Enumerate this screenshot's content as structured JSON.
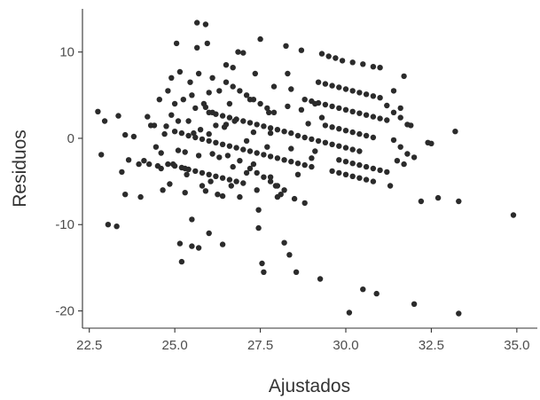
{
  "chart_data": {
    "type": "scatter",
    "xlabel": "Ajustados",
    "ylabel": "Residuos",
    "xlim": [
      22.3,
      35.6
    ],
    "ylim": [
      -22,
      15
    ],
    "xticks": [
      "22.5",
      "25.0",
      "27.5",
      "30.0",
      "32.5",
      "35.0"
    ],
    "yticks": [
      "10",
      "0",
      "-10",
      "-20"
    ],
    "grid": false,
    "legend": "none",
    "point_color": "#2b2b2b",
    "series": [
      {
        "points": [
          [
            22.75,
            3.1
          ],
          [
            22.85,
            -1.9
          ],
          [
            22.95,
            2.0
          ],
          [
            23.05,
            -10.0
          ],
          [
            23.3,
            -10.2
          ],
          [
            23.35,
            2.6
          ],
          [
            23.45,
            -3.9
          ],
          [
            23.55,
            -6.5
          ],
          [
            23.55,
            0.4
          ],
          [
            23.65,
            -2.5
          ],
          [
            23.8,
            0.2
          ],
          [
            23.95,
            -3.0
          ],
          [
            24.0,
            -6.8
          ],
          [
            24.1,
            -2.6
          ],
          [
            24.2,
            2.5
          ],
          [
            24.25,
            -3.0
          ],
          [
            24.3,
            1.5
          ],
          [
            24.4,
            1.5
          ],
          [
            24.45,
            -1.0
          ],
          [
            24.5,
            -3.2
          ],
          [
            24.55,
            4.5
          ],
          [
            24.6,
            -3.5
          ],
          [
            24.65,
            -6.0
          ],
          [
            24.7,
            0.5
          ],
          [
            24.75,
            1.4
          ],
          [
            24.8,
            5.5
          ],
          [
            24.85,
            -5.3
          ],
          [
            24.9,
            7.0
          ],
          [
            24.95,
            -3.0
          ],
          [
            25.05,
            11.0
          ],
          [
            25.1,
            2.0
          ],
          [
            25.15,
            -12.2
          ],
          [
            25.15,
            7.7
          ],
          [
            25.2,
            -14.3
          ],
          [
            25.25,
            4.5
          ],
          [
            25.3,
            -6.3
          ],
          [
            25.3,
            -3.5
          ],
          [
            25.35,
            -4.2
          ],
          [
            25.4,
            2.0
          ],
          [
            25.45,
            6.5
          ],
          [
            25.5,
            -12.5
          ],
          [
            25.5,
            -9.4
          ],
          [
            25.55,
            0.6
          ],
          [
            25.6,
            3.5
          ],
          [
            25.65,
            13.4
          ],
          [
            25.65,
            10.5
          ],
          [
            25.7,
            -12.7
          ],
          [
            25.7,
            7.5
          ],
          [
            25.75,
            1.0
          ],
          [
            25.8,
            -5.5
          ],
          [
            25.85,
            4.0
          ],
          [
            25.9,
            13.2
          ],
          [
            25.95,
            11.0
          ],
          [
            26.0,
            -11.0
          ],
          [
            26.0,
            0.5
          ],
          [
            26.05,
            -5.0
          ],
          [
            26.1,
            7.0
          ],
          [
            26.1,
            3.0
          ],
          [
            26.2,
            1.5
          ],
          [
            26.25,
            -6.5
          ],
          [
            26.3,
            5.5
          ],
          [
            26.4,
            -12.3
          ],
          [
            26.45,
            1.3
          ],
          [
            26.5,
            8.5
          ],
          [
            26.55,
            -2.0
          ],
          [
            26.6,
            4.0
          ],
          [
            26.65,
            -5.5
          ],
          [
            26.7,
            8.2
          ],
          [
            26.75,
            2.0
          ],
          [
            26.85,
            10.0
          ],
          [
            26.9,
            -6.8
          ],
          [
            27.0,
            9.9
          ],
          [
            27.1,
            -4.0
          ],
          [
            27.2,
            4.5
          ],
          [
            27.3,
            -3.0
          ],
          [
            27.35,
            7.5
          ],
          [
            27.4,
            -6.0
          ],
          [
            27.45,
            -10.4
          ],
          [
            27.45,
            -8.3
          ],
          [
            27.5,
            11.5
          ],
          [
            27.55,
            -14.5
          ],
          [
            27.6,
            -15.5
          ],
          [
            27.7,
            -1.0
          ],
          [
            27.75,
            3.0
          ],
          [
            27.8,
            -4.5
          ],
          [
            27.9,
            6.0
          ],
          [
            27.95,
            -5.5
          ],
          [
            28.0,
            -6.8
          ],
          [
            28.1,
            -6.5
          ],
          [
            28.2,
            -12.1
          ],
          [
            28.25,
            10.7
          ],
          [
            28.3,
            7.5
          ],
          [
            28.35,
            -13.5
          ],
          [
            28.4,
            5.7
          ],
          [
            28.5,
            -7.0
          ],
          [
            28.55,
            -15.5
          ],
          [
            28.7,
            10.2
          ],
          [
            28.8,
            -7.5
          ],
          [
            29.0,
            -2.3
          ],
          [
            29.1,
            4.0
          ],
          [
            29.25,
            -16.3
          ],
          [
            29.3,
            9.8
          ],
          [
            29.5,
            9.5
          ],
          [
            29.7,
            9.3
          ],
          [
            29.9,
            9.0
          ],
          [
            30.1,
            -20.2
          ],
          [
            30.2,
            8.8
          ],
          [
            30.5,
            -17.5
          ],
          [
            30.5,
            8.6
          ],
          [
            30.8,
            8.3
          ],
          [
            30.9,
            -18.0
          ],
          [
            31.0,
            8.2
          ],
          [
            31.3,
            -5.5
          ],
          [
            31.4,
            5.5
          ],
          [
            31.5,
            -2.6
          ],
          [
            31.6,
            3.5
          ],
          [
            31.7,
            7.2
          ],
          [
            31.7,
            -3.0
          ],
          [
            31.9,
            1.5
          ],
          [
            32.0,
            -19.2
          ],
          [
            32.2,
            -7.3
          ],
          [
            32.4,
            -0.5
          ],
          [
            32.5,
            -0.6
          ],
          [
            32.7,
            -6.9
          ],
          [
            33.2,
            0.8
          ],
          [
            33.3,
            -7.3
          ],
          [
            33.3,
            -20.3
          ],
          [
            34.9,
            -8.9
          ],
          [
            25.0,
            0.8
          ],
          [
            25.2,
            0.6
          ],
          [
            25.4,
            0.3
          ],
          [
            25.6,
            0.1
          ],
          [
            25.8,
            -0.1
          ],
          [
            26.0,
            -0.3
          ],
          [
            26.2,
            -0.5
          ],
          [
            26.4,
            -0.7
          ],
          [
            26.6,
            -0.9
          ],
          [
            26.8,
            -1.1
          ],
          [
            27.0,
            -1.3
          ],
          [
            27.2,
            -1.5
          ],
          [
            27.4,
            -1.7
          ],
          [
            27.6,
            -1.9
          ],
          [
            27.8,
            -2.1
          ],
          [
            28.0,
            -2.3
          ],
          [
            28.2,
            -2.5
          ],
          [
            28.4,
            -2.7
          ],
          [
            28.6,
            -2.9
          ],
          [
            28.8,
            -3.1
          ],
          [
            29.0,
            -3.3
          ],
          [
            24.8,
            -3.0
          ],
          [
            25.0,
            -3.2
          ],
          [
            25.2,
            -3.4
          ],
          [
            25.4,
            -3.6
          ],
          [
            25.6,
            -3.8
          ],
          [
            25.8,
            -4.0
          ],
          [
            26.0,
            -4.2
          ],
          [
            26.2,
            -4.4
          ],
          [
            26.4,
            -4.6
          ],
          [
            26.6,
            -4.8
          ],
          [
            26.8,
            -5.0
          ],
          [
            27.0,
            -5.2
          ],
          [
            26.0,
            3.0
          ],
          [
            26.2,
            2.8
          ],
          [
            26.4,
            2.6
          ],
          [
            26.6,
            2.4
          ],
          [
            26.8,
            2.2
          ],
          [
            27.0,
            2.0
          ],
          [
            27.2,
            1.8
          ],
          [
            27.4,
            1.6
          ],
          [
            27.6,
            1.4
          ],
          [
            27.8,
            1.2
          ],
          [
            28.0,
            1.0
          ],
          [
            28.2,
            0.8
          ],
          [
            28.4,
            0.6
          ],
          [
            28.6,
            0.3
          ],
          [
            28.8,
            0.1
          ],
          [
            29.0,
            -0.1
          ],
          [
            29.2,
            -0.3
          ],
          [
            29.4,
            -0.5
          ],
          [
            29.6,
            -0.7
          ],
          [
            29.8,
            -0.9
          ],
          [
            30.0,
            -1.1
          ],
          [
            30.2,
            -1.3
          ],
          [
            30.4,
            -1.5
          ],
          [
            29.2,
            6.5
          ],
          [
            29.4,
            6.3
          ],
          [
            29.6,
            6.1
          ],
          [
            29.8,
            5.9
          ],
          [
            30.0,
            5.7
          ],
          [
            30.2,
            5.5
          ],
          [
            30.4,
            5.3
          ],
          [
            30.6,
            5.1
          ],
          [
            30.8,
            4.9
          ],
          [
            31.0,
            4.7
          ],
          [
            28.8,
            4.5
          ],
          [
            29.0,
            4.3
          ],
          [
            29.2,
            4.1
          ],
          [
            29.4,
            3.9
          ],
          [
            29.6,
            3.7
          ],
          [
            29.8,
            3.5
          ],
          [
            30.0,
            3.3
          ],
          [
            30.2,
            3.1
          ],
          [
            30.4,
            2.9
          ],
          [
            30.6,
            2.7
          ],
          [
            30.8,
            2.5
          ],
          [
            31.0,
            2.3
          ],
          [
            31.2,
            2.1
          ],
          [
            29.4,
            1.5
          ],
          [
            29.6,
            1.3
          ],
          [
            29.8,
            1.1
          ],
          [
            30.0,
            0.9
          ],
          [
            30.2,
            0.7
          ],
          [
            30.4,
            0.5
          ],
          [
            30.6,
            0.3
          ],
          [
            30.8,
            0.1
          ],
          [
            29.8,
            -2.5
          ],
          [
            30.0,
            -2.7
          ],
          [
            30.2,
            -2.9
          ],
          [
            30.4,
            -3.1
          ],
          [
            30.6,
            -3.3
          ],
          [
            30.8,
            -3.5
          ],
          [
            31.0,
            -3.7
          ],
          [
            31.2,
            -3.9
          ],
          [
            29.6,
            -3.8
          ],
          [
            29.8,
            -4.0
          ],
          [
            30.0,
            -4.2
          ],
          [
            30.2,
            -4.4
          ],
          [
            30.4,
            -4.6
          ],
          [
            30.6,
            -4.8
          ],
          [
            30.8,
            -5.0
          ],
          [
            31.2,
            3.8
          ],
          [
            31.4,
            3.0
          ],
          [
            31.6,
            2.4
          ],
          [
            31.8,
            1.6
          ],
          [
            31.4,
            -0.2
          ],
          [
            31.6,
            -1.0
          ],
          [
            31.8,
            -1.8
          ],
          [
            32.0,
            -2.2
          ],
          [
            26.5,
            6.5
          ],
          [
            26.7,
            6.0
          ],
          [
            26.9,
            5.5
          ],
          [
            27.1,
            5.0
          ],
          [
            27.3,
            4.5
          ],
          [
            27.5,
            4.0
          ],
          [
            27.7,
            3.5
          ],
          [
            27.9,
            3.0
          ],
          [
            27.2,
            -3.5
          ],
          [
            27.4,
            -4.0
          ],
          [
            27.6,
            -4.5
          ],
          [
            27.8,
            -5.0
          ],
          [
            28.0,
            -5.5
          ],
          [
            28.2,
            -6.0
          ],
          [
            26.0,
            5.3
          ],
          [
            25.5,
            5.0
          ],
          [
            25.0,
            4.0
          ],
          [
            24.9,
            2.7
          ],
          [
            25.9,
            3.6
          ],
          [
            26.3,
            -2.2
          ],
          [
            26.7,
            -3.3
          ],
          [
            27.1,
            -0.3
          ],
          [
            27.8,
            0.6
          ],
          [
            28.4,
            -1.2
          ],
          [
            28.9,
            1.7
          ],
          [
            29.3,
            2.4
          ],
          [
            28.3,
            3.7
          ],
          [
            28.7,
            3.3
          ],
          [
            25.3,
            -1.6
          ],
          [
            25.7,
            -2.0
          ],
          [
            26.1,
            -1.8
          ],
          [
            26.5,
            1.6
          ],
          [
            26.9,
            -2.6
          ],
          [
            27.3,
            0.7
          ],
          [
            25.1,
            -1.4
          ],
          [
            24.6,
            -1.7
          ],
          [
            25.9,
            -6.1
          ],
          [
            26.4,
            -6.7
          ],
          [
            28.6,
            -4.2
          ],
          [
            29.1,
            -1.5
          ]
        ]
      }
    ]
  }
}
